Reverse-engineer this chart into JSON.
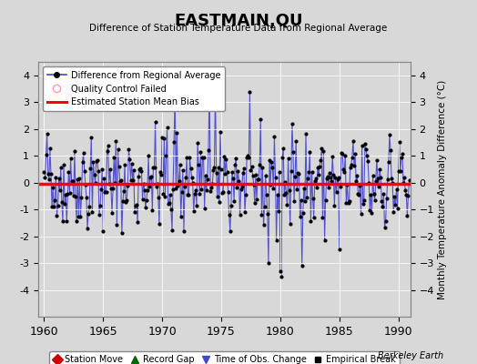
{
  "title": "EASTMAIN,QU",
  "subtitle": "Difference of Station Temperature Data from Regional Average",
  "ylabel": "Monthly Temperature Anomaly Difference (°C)",
  "xlim": [
    1959.5,
    1991.0
  ],
  "ylim": [
    -5,
    4.5
  ],
  "yticks": [
    -4,
    -3,
    -2,
    -1,
    0,
    1,
    2,
    3,
    4
  ],
  "xticks": [
    1960,
    1965,
    1970,
    1975,
    1980,
    1985,
    1990
  ],
  "bias_level": -0.05,
  "background_color": "#d8d8d8",
  "plot_bg_color": "#d8d8d8",
  "line_color": "#4444cc",
  "dot_color": "#000000",
  "bias_color": "#ff0000",
  "watermark": "Berkeley Earth",
  "seed": 42,
  "n_points": 372
}
